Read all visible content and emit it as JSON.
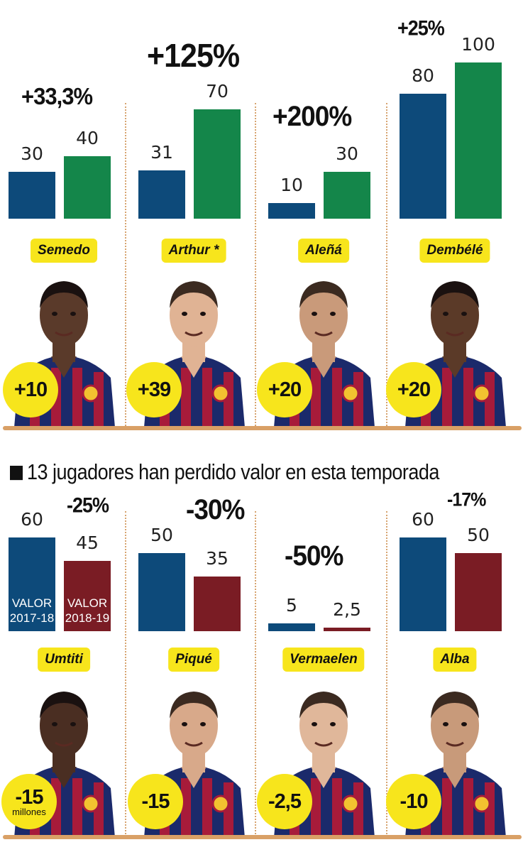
{
  "colors": {
    "prev_value": "#0d4a7a",
    "gain_value": "#14864a",
    "loss_value": "#7a1c24",
    "badge": "#f7e51c",
    "rule": "#d9a066"
  },
  "section_loss_title": "13 jugadores han perdido valor en esta temporada",
  "legend": {
    "prev_label": "VALOR 2017-18",
    "curr_label": "VALOR 2018-19"
  },
  "badge_unit": "millones",
  "chart_data": [
    {
      "type": "bar",
      "group": "gain",
      "series": [
        {
          "name": "VALOR 2017-18",
          "values": [
            30,
            31,
            10,
            80
          ]
        },
        {
          "name": "VALOR 2018-19",
          "values": [
            40,
            70,
            30,
            100
          ]
        }
      ],
      "categories": [
        "Semedo",
        "Arthur *",
        "Aleñá",
        "Dembélé"
      ],
      "value_labels_prev": [
        "30",
        "31",
        "10",
        "80"
      ],
      "value_labels_curr": [
        "40",
        "70",
        "30",
        "100"
      ],
      "change_pct": [
        "+33,3%",
        "+125%",
        "+200%",
        "+25%"
      ],
      "change_abs": [
        "+10",
        "+39",
        "+20",
        "+20"
      ],
      "ylim": [
        0,
        100
      ]
    },
    {
      "type": "bar",
      "group": "loss",
      "series": [
        {
          "name": "VALOR 2017-18",
          "values": [
            60,
            50,
            5,
            60
          ]
        },
        {
          "name": "VALOR 2018-19",
          "values": [
            45,
            35,
            2.5,
            50
          ]
        }
      ],
      "categories": [
        "Umtiti",
        "Piqué",
        "Vermaelen",
        "Alba"
      ],
      "value_labels_prev": [
        "60",
        "50",
        "5",
        "60"
      ],
      "value_labels_curr": [
        "45",
        "35",
        "2,5",
        "50"
      ],
      "change_pct": [
        "-25%",
        "-30%",
        "-50%",
        "-17%"
      ],
      "change_abs": [
        "-15",
        "-15",
        "-2,5",
        "-10"
      ],
      "ylim": [
        0,
        60
      ]
    }
  ]
}
